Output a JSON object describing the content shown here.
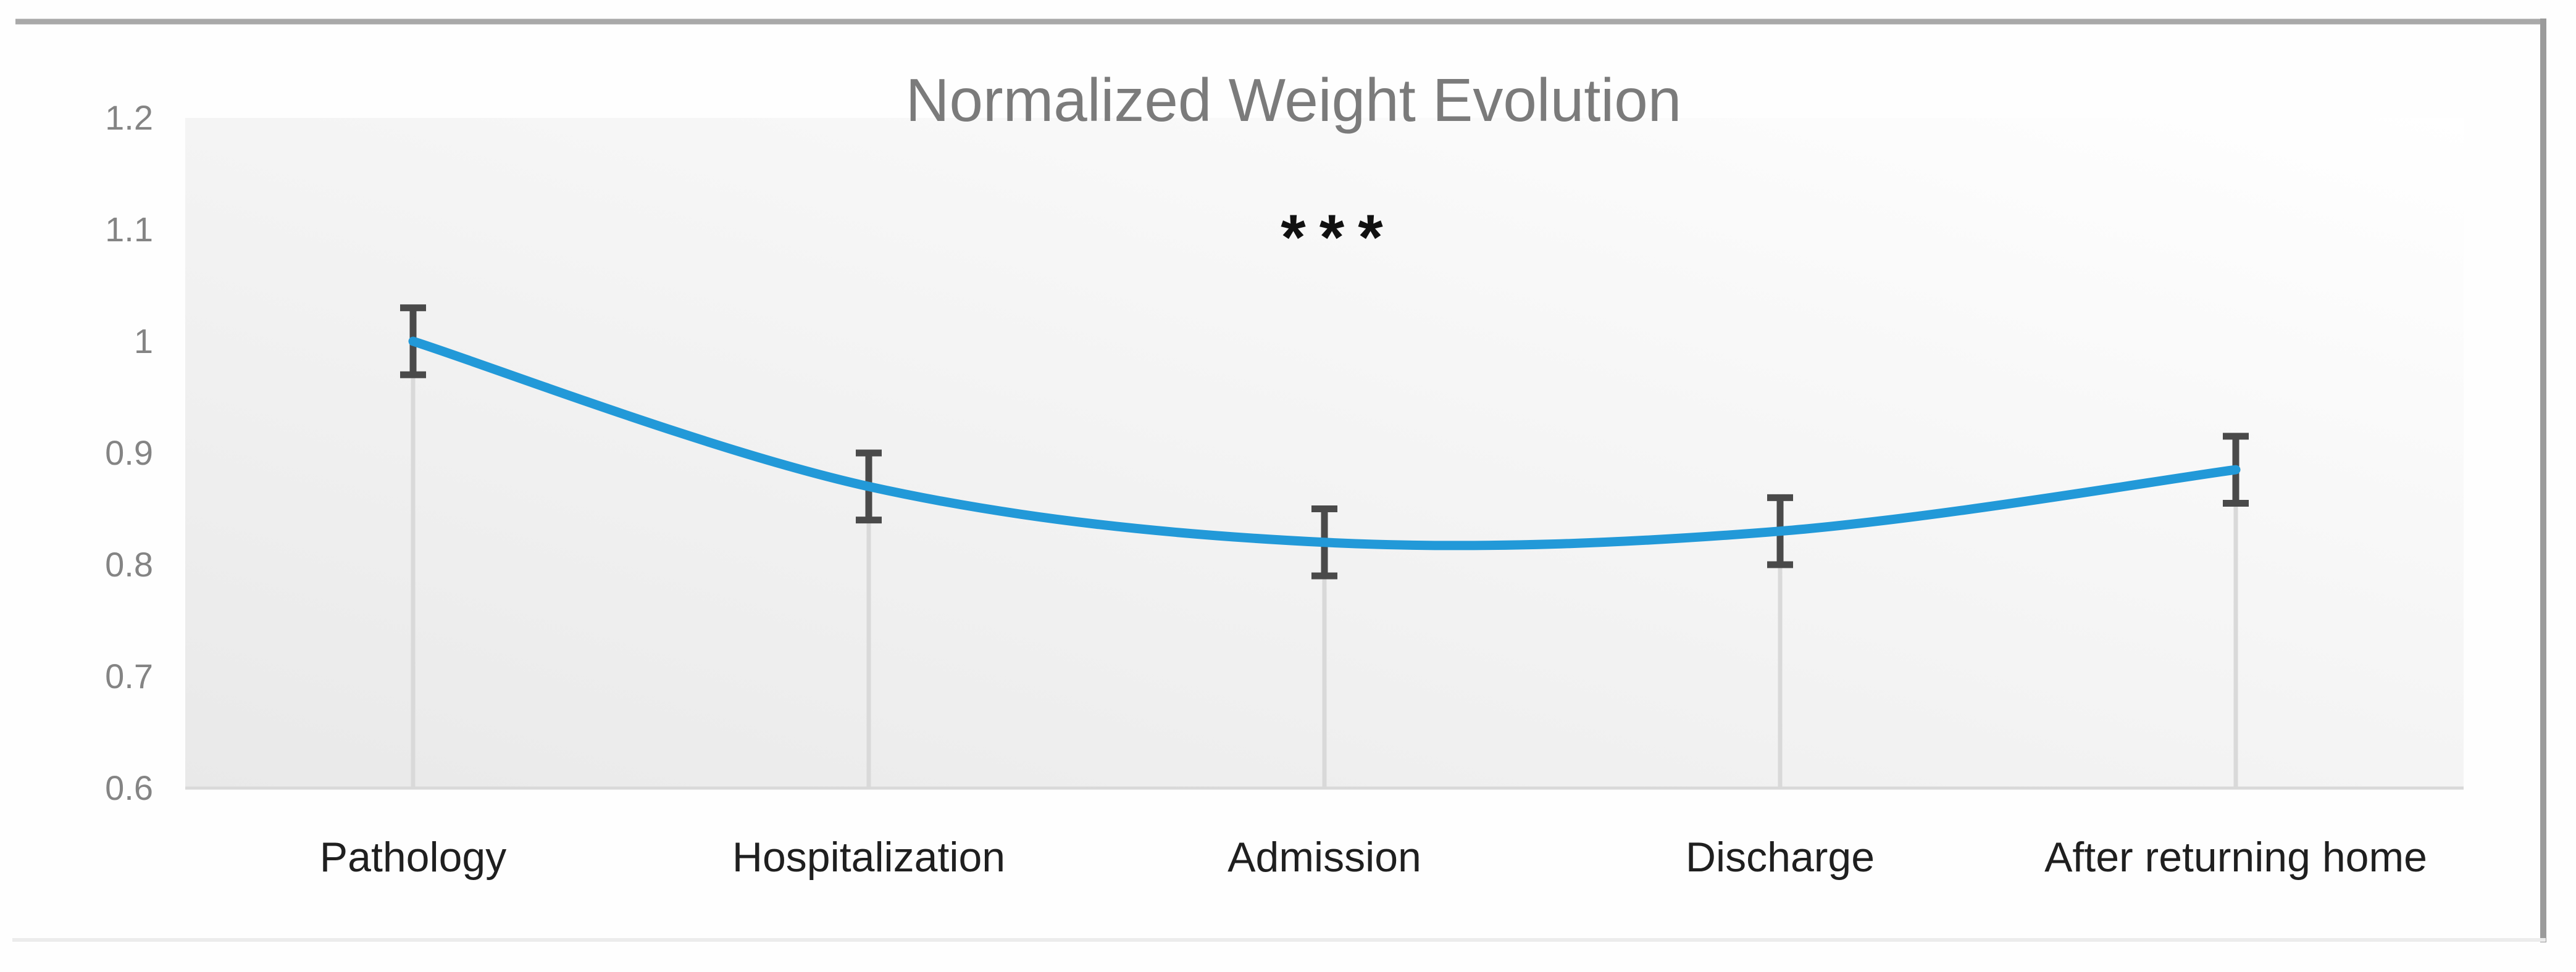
{
  "chart_data": {
    "type": "line",
    "title": "Normalized Weight Evolution",
    "categories": [
      "Pathology",
      "Hospitalization",
      "Admission",
      "Discharge",
      "After returning home"
    ],
    "series": [
      {
        "values": [
          1.0,
          0.87,
          0.82,
          0.83,
          0.885
        ],
        "error_bars": [
          0.03,
          0.03,
          0.03,
          0.03,
          0.03
        ]
      }
    ],
    "annotation": {
      "text": "***"
    },
    "y_axis": {
      "min": 0.6,
      "max": 1.2,
      "step": 0.1,
      "ticks": [
        "1.2",
        "1.1",
        "1",
        "0.9",
        "0.8",
        "0.7",
        "0.6"
      ]
    },
    "legend_visible": false,
    "gridlines": "none",
    "drop_lines": true,
    "smooth_line": true,
    "error_bar_style": "capped-vertical"
  },
  "colors": {
    "line": "#2299D8",
    "error_bar": "#4a4a4a",
    "title": "#7b7b7b",
    "y_tick_labels": "#848484",
    "category_labels": "#1f1f1f",
    "drop_line": "#d9d9d9",
    "axis_line": "#d9d9d9",
    "plot_fill_dark": "#e9e9e9",
    "plot_fill_mid": "#f5f5f5",
    "plot_fill_light": "#ffffff",
    "frame_top": "#a9a9a9",
    "frame_right": "#9b9b9b",
    "frame_bottom": "#ececec",
    "annotation_color": "#111111"
  }
}
